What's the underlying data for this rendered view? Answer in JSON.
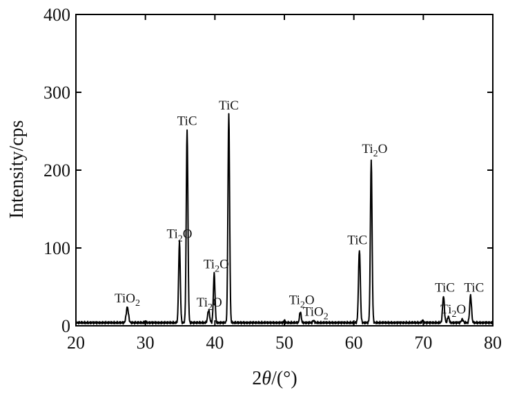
{
  "chart_data": {
    "type": "line",
    "title": "",
    "xlabel_prefix": "2",
    "xlabel_theta": "θ",
    "xlabel_suffix": "/(°)",
    "ylabel": "Intensity/cps",
    "xlim": [
      20,
      80
    ],
    "ylim": [
      0,
      400
    ],
    "xticks": [
      20,
      30,
      40,
      50,
      60,
      70,
      80
    ],
    "yticks": [
      0,
      100,
      200,
      300,
      400
    ],
    "grid": false,
    "baseline": 4,
    "peaks": [
      {
        "x": 27.4,
        "y": 24,
        "w": 0.16
      },
      {
        "x": 30.0,
        "y": 6,
        "w": 0.08
      },
      {
        "x": 34.9,
        "y": 108,
        "w": 0.12
      },
      {
        "x": 36.0,
        "y": 252,
        "w": 0.12
      },
      {
        "x": 39.1,
        "y": 20,
        "w": 0.14
      },
      {
        "x": 39.9,
        "y": 67,
        "w": 0.12
      },
      {
        "x": 42.0,
        "y": 272,
        "w": 0.12
      },
      {
        "x": 50.0,
        "y": 8,
        "w": 0.06
      },
      {
        "x": 52.3,
        "y": 18,
        "w": 0.12
      },
      {
        "x": 54.2,
        "y": 7,
        "w": 0.1
      },
      {
        "x": 60.8,
        "y": 98,
        "w": 0.13
      },
      {
        "x": 62.5,
        "y": 213,
        "w": 0.12
      },
      {
        "x": 69.9,
        "y": 7,
        "w": 0.1
      },
      {
        "x": 72.9,
        "y": 38,
        "w": 0.13
      },
      {
        "x": 73.6,
        "y": 12,
        "w": 0.12
      },
      {
        "x": 75.6,
        "y": 8,
        "w": 0.14
      },
      {
        "x": 76.8,
        "y": 39,
        "w": 0.13
      }
    ],
    "annotations": [
      {
        "base": "TiO",
        "sub": "2",
        "x": 27.4,
        "y": 30
      },
      {
        "base": "Ti",
        "sub": "2",
        "after": "O",
        "x": 34.9,
        "y": 113
      },
      {
        "base": "TiC",
        "sub": "",
        "x": 36.0,
        "y": 258
      },
      {
        "base": "Ti",
        "sub": "2",
        "after": "O",
        "x": 39.2,
        "y": 25
      },
      {
        "base": "Ti",
        "sub": "2",
        "after": "O",
        "x": 40.2,
        "y": 74
      },
      {
        "base": "TiC",
        "sub": "",
        "x": 42.0,
        "y": 278
      },
      {
        "base": "Ti",
        "sub": "2",
        "after": "O",
        "x": 52.5,
        "y": 28
      },
      {
        "base": "TiO",
        "sub": "2",
        "x": 54.5,
        "y": 13
      },
      {
        "base": "TiC",
        "sub": "",
        "x": 60.5,
        "y": 105
      },
      {
        "base": "Ti",
        "sub": "2",
        "after": "O",
        "x": 63.0,
        "y": 222
      },
      {
        "base": "TiC",
        "sub": "",
        "x": 73.1,
        "y": 44
      },
      {
        "base": "Ti",
        "sub": "2",
        "after": "O",
        "x": 74.3,
        "y": 16
      },
      {
        "base": "TiC",
        "sub": "",
        "x": 77.3,
        "y": 44
      }
    ]
  }
}
